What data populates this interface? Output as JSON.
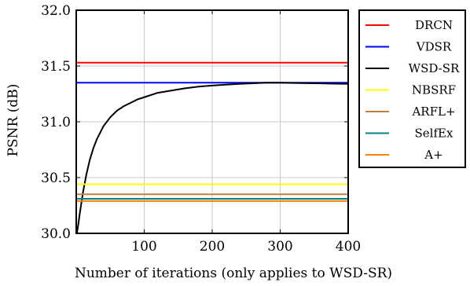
{
  "chart_data": {
    "type": "line",
    "title": "",
    "xlabel": "Number of iterations (only applies to WSD-SR)",
    "ylabel": "PSNR (dB)",
    "xlim": [
      0,
      400
    ],
    "ylim": [
      30.0,
      32.0
    ],
    "x_ticks": [
      100,
      200,
      300,
      400
    ],
    "y_ticks": [
      30.0,
      30.5,
      31.0,
      31.5,
      32.0
    ],
    "x_tick_labels": [
      "100",
      "200",
      "300",
      "400"
    ],
    "y_tick_labels": [
      "30.0",
      "30.5",
      "31.0",
      "31.5",
      "32.0"
    ],
    "grid": true,
    "legend_position": "outside-right",
    "series": [
      {
        "name": "DRCN",
        "color": "#ff0000",
        "type": "constant",
        "y": 31.53
      },
      {
        "name": "VDSR",
        "color": "#0000ff",
        "type": "constant",
        "y": 31.35
      },
      {
        "name": "WSD-SR",
        "color": "#000000",
        "type": "curve",
        "x": [
          1,
          3,
          5,
          8,
          10,
          15,
          20,
          25,
          30,
          40,
          50,
          60,
          70,
          80,
          90,
          100,
          120,
          140,
          160,
          180,
          200,
          220,
          240,
          260,
          280,
          300,
          320,
          340,
          360,
          380,
          400
        ],
        "y": [
          30.0,
          30.08,
          30.17,
          30.29,
          30.37,
          30.53,
          30.66,
          30.76,
          30.84,
          30.96,
          31.04,
          31.1,
          31.14,
          31.17,
          31.2,
          31.22,
          31.26,
          31.28,
          31.3,
          31.315,
          31.325,
          31.333,
          31.34,
          31.345,
          31.35,
          31.35,
          31.348,
          31.346,
          31.344,
          31.342,
          31.34
        ]
      },
      {
        "name": "NBSRF",
        "color": "#ffff00",
        "type": "constant",
        "y": 30.44
      },
      {
        "name": "ARFL+",
        "color": "#c08040",
        "type": "constant",
        "y": 30.35
      },
      {
        "name": "SelfEx",
        "color": "#008080",
        "type": "constant",
        "y": 30.31
      },
      {
        "name": "A+",
        "color": "#ff8000",
        "type": "constant",
        "y": 30.29
      }
    ]
  }
}
